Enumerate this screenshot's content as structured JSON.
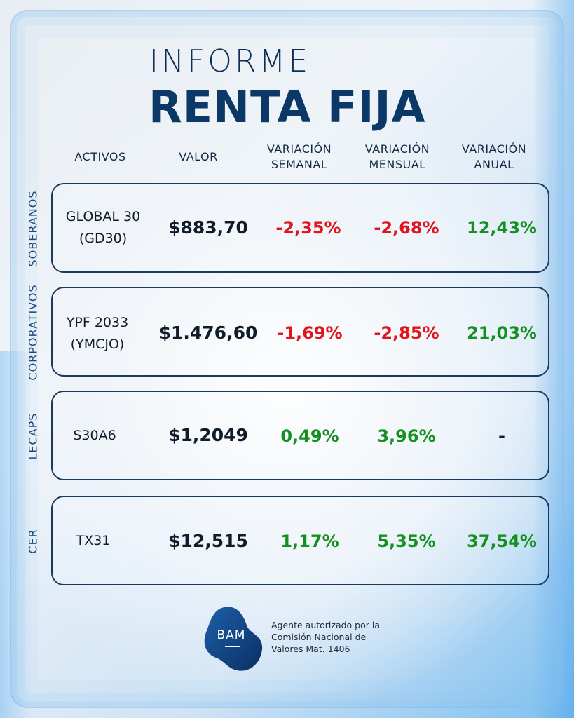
{
  "header": {
    "title_top": "INFORME",
    "title_main": "RENTA FIJA"
  },
  "columns": {
    "activos": "ACTIVOS",
    "valor": "VALOR",
    "semanal": [
      "VARIACIÓN",
      "SEMANAL"
    ],
    "mensual": [
      "VARIACIÓN",
      "MENSUAL"
    ],
    "anual": [
      "VARIACIÓN",
      "ANUAL"
    ]
  },
  "rows": [
    {
      "category": "SOBERANOS",
      "asset": [
        "GLOBAL 30",
        "(GD30)"
      ],
      "valor": "$883,70",
      "semanal": "-2,35%",
      "mensual": "-2,68%",
      "anual": "12,43%"
    },
    {
      "category": "CORPORATIVOS",
      "asset": [
        "YPF 2033",
        "(YMCJO)"
      ],
      "valor": "$1.476,60",
      "semanal": "-1,69%",
      "mensual": "-2,85%",
      "anual": "21,03%"
    },
    {
      "category": "LECAPS",
      "asset": [
        "S30A6"
      ],
      "valor": "$1,2049",
      "semanal": "0,49%",
      "mensual": "3,96%",
      "anual": "-"
    },
    {
      "category": "CER",
      "asset": [
        "TX31"
      ],
      "valor": "$12,515",
      "semanal": "1,17%",
      "mensual": "5,35%",
      "anual": "37,54%"
    }
  ],
  "colors": {
    "negative": "#e0141b",
    "positive": "#13901f",
    "brand": "#0b3866"
  },
  "footer": {
    "logo_text": "BAM",
    "lines": [
      "Agente autorizado por la",
      "Comisión Nacional de",
      "Valores Mat. 1406"
    ]
  }
}
